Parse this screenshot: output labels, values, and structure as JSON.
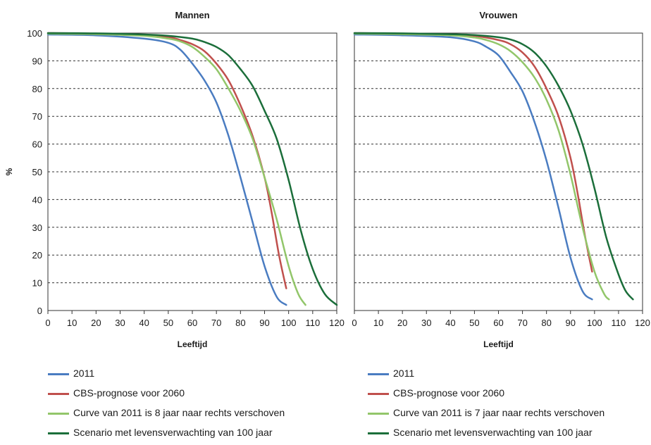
{
  "colors": {
    "2011": "#4a7cc1",
    "cbs": "#c0504d",
    "shift": "#92c66a",
    "scen": "#1b6e3a",
    "grid": "#333333",
    "axis": "#333333"
  },
  "chart_data": [
    {
      "type": "line",
      "title": "Mannen",
      "xlabel": "Leeftijd",
      "ylabel": "%",
      "xlim": [
        0,
        120
      ],
      "ylim": [
        0,
        100
      ],
      "xticks": [
        "0",
        "10",
        "20",
        "30",
        "40",
        "50",
        "60",
        "70",
        "80",
        "90",
        "100",
        "110",
        "120"
      ],
      "yticks": [
        "0",
        "10",
        "20",
        "30",
        "40",
        "50",
        "60",
        "70",
        "80",
        "90",
        "100"
      ],
      "grid": "horizontal-dashed",
      "series": [
        {
          "key": "2011",
          "x": [
            0,
            20,
            40,
            50,
            55,
            60,
            65,
            70,
            75,
            80,
            85,
            90,
            95,
            99
          ],
          "y": [
            99.5,
            99.2,
            98,
            96.5,
            94,
            89,
            83,
            75,
            63,
            48,
            32,
            16,
            5,
            2
          ]
        },
        {
          "key": "cbs",
          "x": [
            0,
            20,
            40,
            50,
            55,
            60,
            65,
            70,
            75,
            80,
            85,
            90,
            93,
            96,
            99
          ],
          "y": [
            100,
            99.8,
            99.2,
            98.6,
            97.5,
            96,
            93.5,
            89,
            83,
            74,
            63,
            48,
            35,
            20,
            8
          ]
        },
        {
          "key": "shift",
          "x": [
            0,
            20,
            40,
            50,
            55,
            60,
            65,
            70,
            75,
            80,
            85,
            90,
            95,
            100,
            104,
            107
          ],
          "y": [
            99.8,
            99.6,
            99,
            98,
            97,
            95,
            91.5,
            87,
            80,
            72,
            62,
            48,
            33,
            16,
            6,
            2
          ]
        },
        {
          "key": "scen",
          "x": [
            0,
            20,
            40,
            50,
            60,
            65,
            70,
            75,
            80,
            85,
            90,
            95,
            100,
            105,
            110,
            115,
            120
          ],
          "y": [
            100,
            99.9,
            99.5,
            99,
            98,
            96.8,
            95,
            92,
            87,
            81,
            72,
            62,
            47,
            29,
            15,
            6,
            2
          ]
        }
      ]
    },
    {
      "type": "line",
      "title": "Vrouwen",
      "xlabel": "Leeftijd",
      "ylabel": "",
      "xlim": [
        0,
        120
      ],
      "ylim": [
        0,
        100
      ],
      "xticks": [
        "0",
        "10",
        "20",
        "30",
        "40",
        "50",
        "60",
        "70",
        "80",
        "90",
        "100",
        "110",
        "120"
      ],
      "yticks": [
        "0",
        "10",
        "20",
        "30",
        "40",
        "50",
        "60",
        "70",
        "80",
        "90",
        "100"
      ],
      "grid": "horizontal-dashed",
      "series": [
        {
          "key": "2011",
          "x": [
            0,
            20,
            40,
            50,
            55,
            60,
            65,
            70,
            75,
            80,
            85,
            90,
            95,
            99
          ],
          "y": [
            99.5,
            99.2,
            98.5,
            97,
            95,
            92,
            86,
            79,
            68,
            54,
            37,
            19,
            7,
            4
          ]
        },
        {
          "key": "cbs",
          "x": [
            0,
            20,
            40,
            50,
            60,
            65,
            70,
            75,
            80,
            85,
            90,
            93,
            96,
            99
          ],
          "y": [
            100,
            99.8,
            99.5,
            99,
            97.5,
            96,
            93,
            88,
            80,
            70,
            55,
            42,
            27,
            14
          ]
        },
        {
          "key": "shift",
          "x": [
            0,
            20,
            40,
            50,
            55,
            60,
            65,
            70,
            75,
            80,
            85,
            90,
            95,
            100,
            104,
            106
          ],
          "y": [
            99.8,
            99.6,
            99.2,
            98.4,
            97.5,
            96,
            93.5,
            89.5,
            84,
            76,
            65,
            49,
            30,
            14,
            6,
            4
          ]
        },
        {
          "key": "scen",
          "x": [
            0,
            20,
            40,
            50,
            60,
            65,
            70,
            75,
            80,
            85,
            90,
            95,
            100,
            105,
            110,
            113,
            116
          ],
          "y": [
            100,
            99.9,
            99.6,
            99.3,
            98.5,
            97.7,
            96,
            93,
            88,
            81,
            72,
            60,
            44,
            26,
            13,
            7,
            4
          ]
        }
      ]
    }
  ],
  "legends": [
    {
      "items": [
        {
          "key": "2011",
          "label": "2011"
        },
        {
          "key": "cbs",
          "label": "CBS-prognose voor 2060"
        },
        {
          "key": "shift",
          "label": "Curve van 2011 is 8 jaar naar rechts verschoven"
        },
        {
          "key": "scen",
          "label": "Scenario met levensverwachting van 100 jaar"
        }
      ]
    },
    {
      "items": [
        {
          "key": "2011",
          "label": "2011"
        },
        {
          "key": "cbs",
          "label": "CBS-prognose voor 2060"
        },
        {
          "key": "shift",
          "label": "Curve van 2011 is 7 jaar naar rechts verschoven"
        },
        {
          "key": "scen",
          "label": "Scenario met levensverwachting van 100 jaar"
        }
      ]
    }
  ]
}
